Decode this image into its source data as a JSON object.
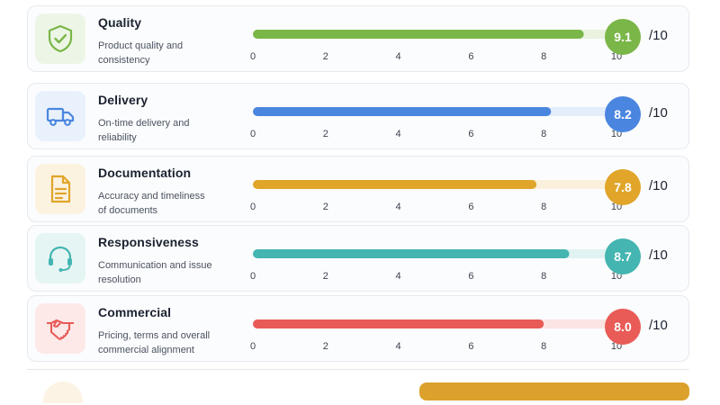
{
  "scale": {
    "max_label": "/10"
  },
  "cards": [
    {
      "key": "quality",
      "title": "Quality",
      "desc": "Product quality and consistency",
      "score": "9.1",
      "icon": "shield-check-icon",
      "color": "#7ab648",
      "track": "#e9f3df",
      "iconbg": "#edf6e6"
    },
    {
      "key": "delivery",
      "title": "Delivery",
      "desc": "On-time delivery and reliability",
      "score": "8.2",
      "icon": "truck-icon",
      "color": "#4a86e0",
      "track": "#e3edfb",
      "iconbg": "#e9f1fc"
    },
    {
      "key": "documentation",
      "title": "Documentation",
      "desc": "Accuracy and timeliness of documents",
      "score": "7.8",
      "icon": "document-icon",
      "color": "#e0a529",
      "track": "#fbf0dc",
      "iconbg": "#fcf2e0"
    },
    {
      "key": "responsiveness",
      "title": "Responsiveness",
      "desc": "Communication and issue resolution",
      "score": "8.7",
      "icon": "headset-icon",
      "color": "#44b5b0",
      "track": "#e0f3f2",
      "iconbg": "#e5f5f4"
    },
    {
      "key": "commercial",
      "title": "Commercial",
      "desc": "Pricing, terms and overall commercial alignment",
      "score": "8.0",
      "icon": "handshake-icon",
      "color": "#e85b57",
      "track": "#fbe4e3",
      "iconbg": "#fce9e8"
    }
  ],
  "chart_data": {
    "type": "bar",
    "categories": [
      "Quality",
      "Delivery",
      "Documentation",
      "Responsiveness",
      "Commercial"
    ],
    "values": [
      9.1,
      8.2,
      7.8,
      8.7,
      8.0
    ],
    "xlim": [
      0,
      10
    ],
    "xticks": [
      "0",
      "2",
      "4",
      "6",
      "8",
      "10"
    ],
    "title": "",
    "xlabel": "",
    "ylabel": ""
  }
}
